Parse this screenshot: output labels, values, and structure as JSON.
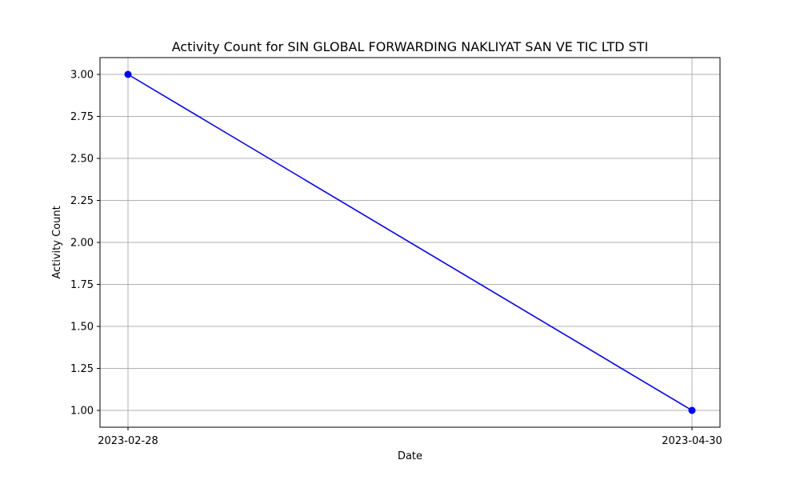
{
  "chart_data": {
    "type": "line",
    "title": "Activity Count for SIN GLOBAL FORWARDING NAKLIYAT SAN VE TIC LTD STI",
    "xlabel": "Date",
    "ylabel": "Activity Count",
    "x": [
      "2023-02-28",
      "2023-04-30"
    ],
    "series": [
      {
        "values": [
          3,
          1
        ],
        "color": "#0000ff",
        "marker": "circle"
      }
    ],
    "x_ticks": [
      "2023-02-28",
      "2023-04-30"
    ],
    "y_ticks": [
      "1.00",
      "1.25",
      "1.50",
      "1.75",
      "2.00",
      "2.25",
      "2.50",
      "2.75",
      "3.00"
    ],
    "ylim": [
      0.9,
      3.1
    ],
    "grid": true,
    "colors": {
      "line": "#0000ff",
      "grid": "#b0b0b0",
      "axes": "#000000"
    }
  }
}
